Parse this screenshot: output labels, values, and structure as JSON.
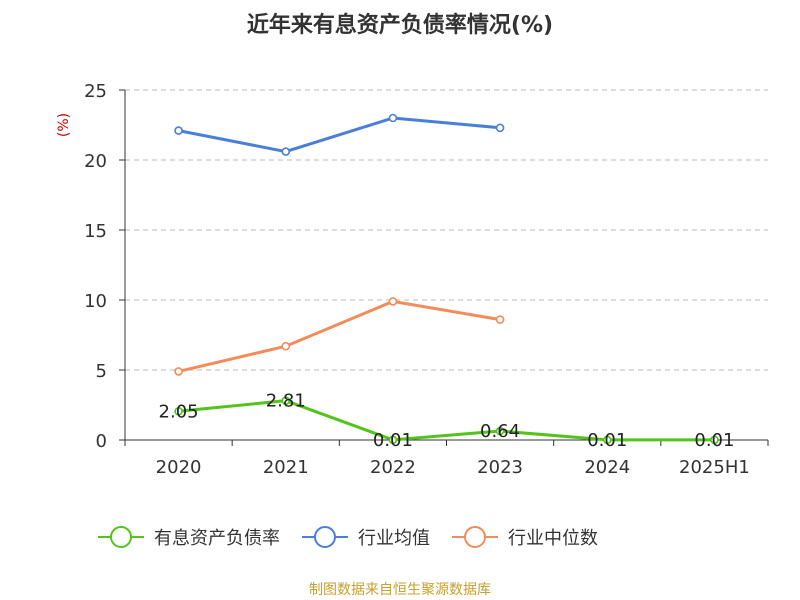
{
  "colors": {
    "source": "#c8a02a",
    "unit": "#cc0000",
    "grid": "#bbbbbb",
    "axis": "#333333"
  },
  "footer": {
    "source": "制图数据来自恒生聚源数据库"
  },
  "chart_data": {
    "type": "line",
    "title": "近年来有息资产负债率情况(%)",
    "ylabel": "(%)",
    "ylim": [
      0,
      25
    ],
    "yticks": [
      0,
      5,
      10,
      15,
      20,
      25
    ],
    "categories": [
      "2020",
      "2021",
      "2022",
      "2023",
      "2024",
      "2025H1"
    ],
    "grid": true,
    "legend_position": "bottom",
    "series": [
      {
        "name": "有息资产负债率",
        "color": "#52c41a",
        "values": [
          2.05,
          2.81,
          0.01,
          0.64,
          0.01,
          0.01
        ],
        "labels": [
          "2.05",
          "2.81",
          "0.01",
          "0.64",
          "0.01",
          "0.01"
        ]
      },
      {
        "name": "行业均值",
        "color": "#4a7fd9",
        "values": [
          22.1,
          20.6,
          23.0,
          22.3,
          null,
          null
        ]
      },
      {
        "name": "行业中位数",
        "color": "#f28c5a",
        "values": [
          4.9,
          6.7,
          9.9,
          8.6,
          null,
          null
        ]
      }
    ]
  }
}
